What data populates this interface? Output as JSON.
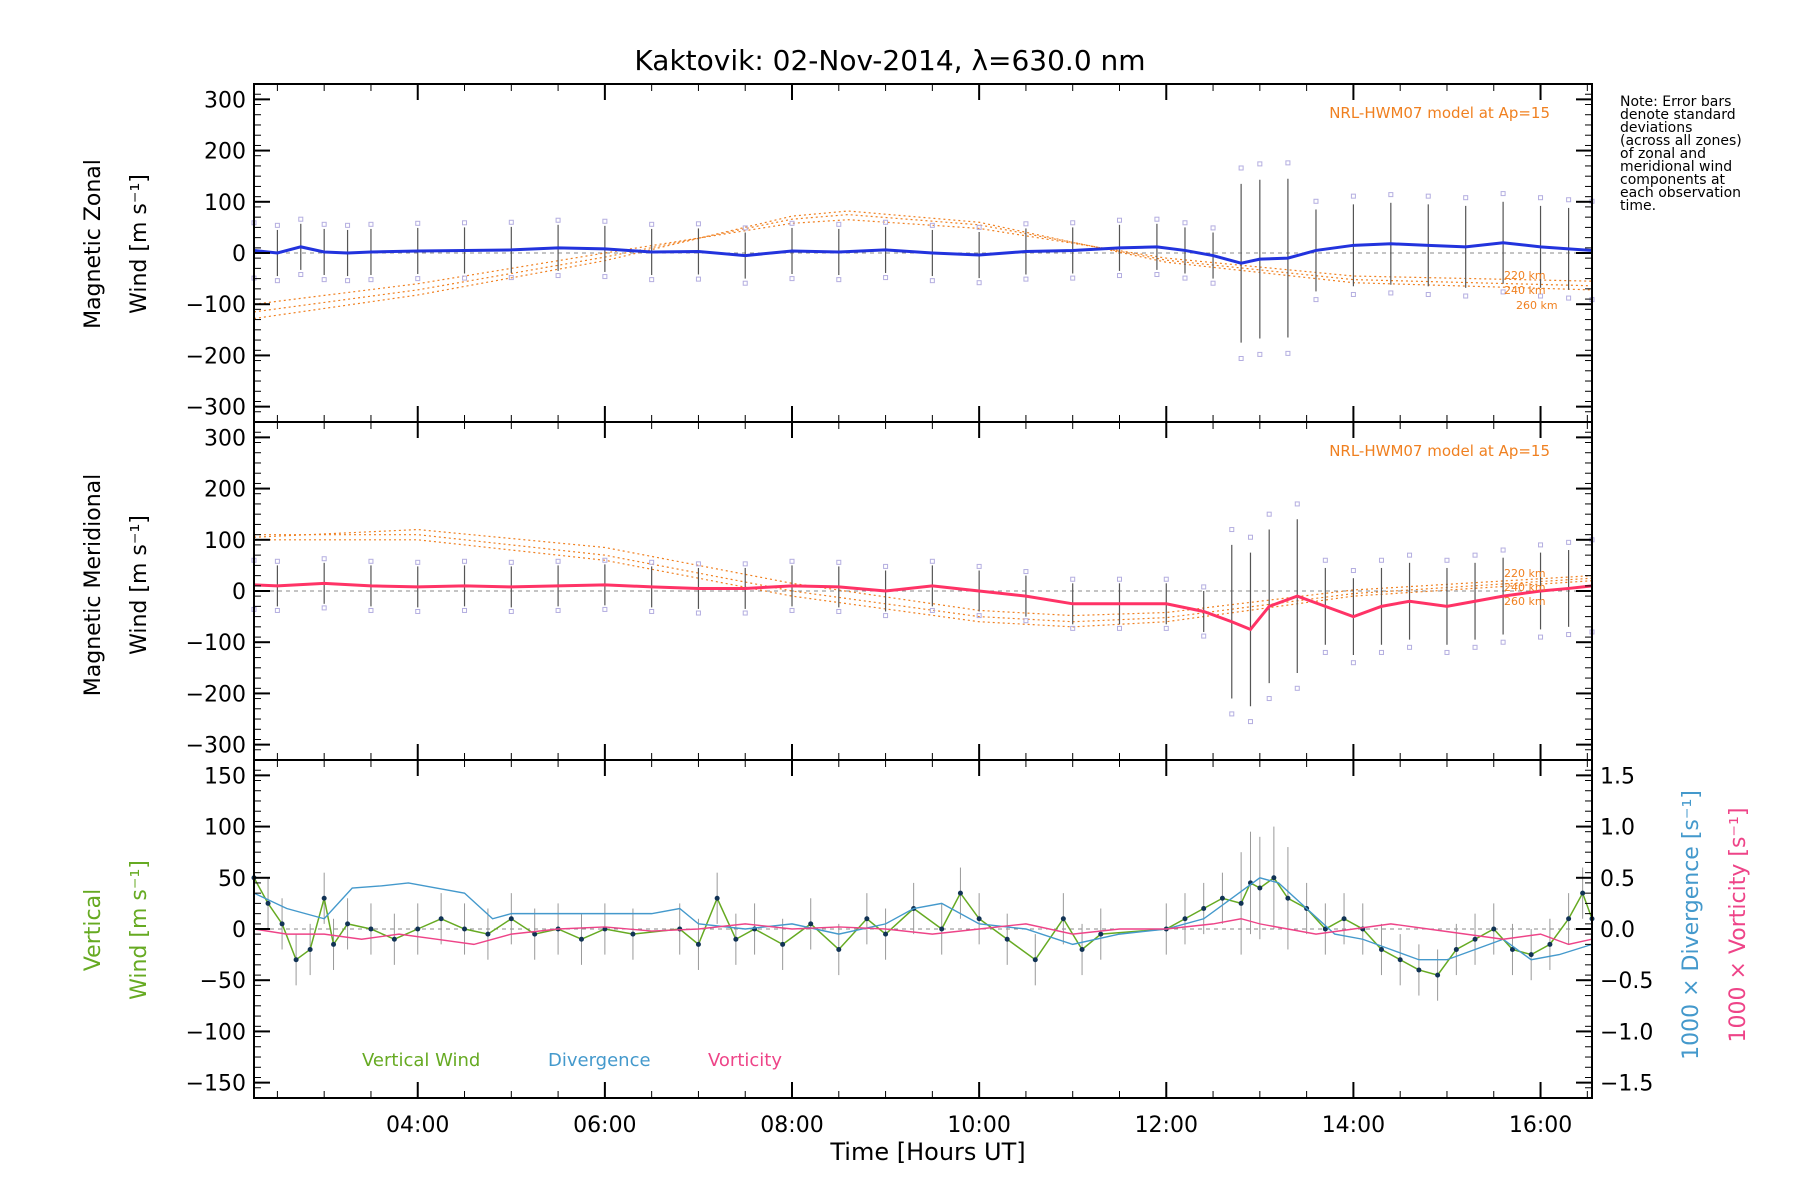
{
  "title": "Kaktovik: 02-Nov-2014, λ=630.0 nm",
  "note": [
    "Note: Error bars",
    "denote standard",
    "deviations",
    "(across all zones)",
    "of zonal and",
    "meridional wind",
    "components at",
    "each observation",
    "time."
  ],
  "colors": {
    "zonal": "#2233dd",
    "zonal_light": "#3a8fe0",
    "meridional": "#ff3366",
    "model": "#f08020",
    "raw_points": "#b4aee0",
    "vertical": "#66aa22",
    "divergence": "#4499cc",
    "vorticity": "#ee4488",
    "error_bars": "#555555"
  },
  "chart_data": [
    {
      "type": "line",
      "panel": "zonal",
      "ylabel_lines": [
        "Magnetic Zonal",
        "Wind [m s⁻¹]"
      ],
      "ylim": [
        -330,
        330
      ],
      "xlim": [
        2.25,
        16.55
      ],
      "yticks": [
        "300",
        "200",
        "100",
        "0",
        "−100",
        "−200",
        "−300"
      ],
      "yticks_values": [
        300,
        200,
        100,
        0,
        -100,
        -200,
        -300
      ],
      "model_label": "NRL-HWM07 model at Ap=15",
      "model_altitudes": [
        "220 km",
        "240 km",
        "260 km"
      ],
      "model_curves": [
        {
          "x": [
            2.25,
            4,
            6,
            8,
            8.6,
            10,
            12,
            14,
            16.55
          ],
          "y": [
            -100,
            -60,
            0,
            58,
            65,
            48,
            -10,
            -45,
            -55
          ]
        },
        {
          "x": [
            2.25,
            4,
            6,
            8,
            8.6,
            10,
            12,
            14,
            16.55
          ],
          "y": [
            -115,
            -72,
            -8,
            66,
            75,
            55,
            -14,
            -52,
            -64
          ]
        },
        {
          "x": [
            2.25,
            4,
            6,
            8,
            8.6,
            10,
            12,
            14,
            16.55
          ],
          "y": [
            -128,
            -82,
            -15,
            72,
            82,
            60,
            -18,
            -58,
            -72
          ]
        }
      ],
      "series": [
        {
          "name": "mean",
          "x": [
            2.25,
            2.5,
            2.75,
            3.0,
            3.25,
            3.5,
            4.0,
            4.5,
            5.0,
            5.5,
            6.0,
            6.5,
            7.0,
            7.5,
            8.0,
            8.5,
            9.0,
            9.5,
            10.0,
            10.5,
            11.0,
            11.5,
            11.9,
            12.2,
            12.5,
            12.8,
            13.0,
            13.3,
            13.6,
            14.0,
            14.4,
            14.8,
            15.2,
            15.6,
            16.0,
            16.3,
            16.55
          ],
          "y": [
            5,
            0,
            12,
            2,
            0,
            2,
            4,
            5,
            6,
            10,
            8,
            2,
            3,
            -5,
            4,
            2,
            6,
            0,
            -4,
            3,
            5,
            10,
            12,
            5,
            -5,
            -20,
            -12,
            -10,
            5,
            15,
            18,
            15,
            12,
            20,
            12,
            8,
            5
          ]
        }
      ]
    },
    {
      "type": "line",
      "panel": "meridional",
      "ylabel_lines": [
        "Magnetic Meridional",
        "Wind [m s⁻¹]"
      ],
      "ylim": [
        -330,
        330
      ],
      "xlim": [
        2.25,
        16.55
      ],
      "yticks": [
        "300",
        "200",
        "100",
        "0",
        "−100",
        "−200",
        "−300"
      ],
      "yticks_values": [
        300,
        200,
        100,
        0,
        -100,
        -200,
        -300
      ],
      "model_label": "NRL-HWM07 model at Ap=15",
      "model_altitudes": [
        "220 km",
        "240 km",
        "260 km"
      ],
      "model_curves": [
        {
          "x": [
            2.25,
            4,
            6,
            8,
            10,
            11,
            12,
            14,
            16.55
          ],
          "y": [
            100,
            100,
            60,
            -10,
            -60,
            -70,
            -60,
            -10,
            20
          ]
        },
        {
          "x": [
            2.25,
            4,
            6,
            8,
            10,
            11,
            12,
            14,
            16.55
          ],
          "y": [
            110,
            110,
            70,
            0,
            -50,
            -60,
            -52,
            -5,
            25
          ]
        },
        {
          "x": [
            2.25,
            4,
            6,
            8,
            10,
            11,
            12,
            14,
            16.55
          ],
          "y": [
            105,
            120,
            85,
            15,
            -38,
            -48,
            -42,
            2,
            30
          ]
        }
      ],
      "series": [
        {
          "name": "mean",
          "x": [
            2.25,
            2.5,
            3.0,
            3.5,
            4.0,
            4.5,
            5.0,
            5.5,
            6.0,
            6.5,
            7.0,
            7.5,
            8.0,
            8.5,
            9.0,
            9.5,
            10.0,
            10.5,
            11.0,
            11.5,
            12.0,
            12.4,
            12.7,
            12.9,
            13.1,
            13.4,
            13.7,
            14.0,
            14.3,
            14.6,
            15.0,
            15.3,
            15.6,
            16.0,
            16.3,
            16.55
          ],
          "y": [
            12,
            10,
            15,
            10,
            8,
            10,
            8,
            10,
            12,
            8,
            5,
            5,
            10,
            8,
            0,
            10,
            0,
            -10,
            -25,
            -25,
            -25,
            -40,
            -60,
            -75,
            -30,
            -10,
            -30,
            -50,
            -30,
            -20,
            -30,
            -20,
            -10,
            0,
            5,
            10
          ]
        }
      ]
    },
    {
      "type": "line",
      "panel": "vertical",
      "ylabel_lines": [
        "Vertical",
        "Wind [m s⁻¹]"
      ],
      "ylabel_right": [
        "1000 × Divergence [s⁻¹]",
        "1000 × Vorticity [s⁻¹]"
      ],
      "ylim": [
        -165,
        165
      ],
      "xlim": [
        2.25,
        16.55
      ],
      "yticks": [
        "150",
        "100",
        "50",
        "0",
        "−50",
        "−100",
        "−150"
      ],
      "yticks_values": [
        150,
        100,
        50,
        0,
        -50,
        -100,
        -150
      ],
      "y2lim": [
        -1.65,
        1.65
      ],
      "y2ticks": [
        "1.5",
        "1.0",
        "0.5",
        "0.0",
        "−0.5",
        "−1.0",
        "−1.5"
      ],
      "y2ticks_values": [
        1.5,
        1.0,
        0.5,
        0.0,
        -0.5,
        -1.0,
        -1.5
      ],
      "xticks": [
        "04:00",
        "06:00",
        "08:00",
        "10:00",
        "12:00",
        "14:00",
        "16:00"
      ],
      "xticks_values": [
        4,
        6,
        8,
        10,
        12,
        14,
        16
      ],
      "xlabel": "Time [Hours UT]",
      "legend": [
        "Vertical Wind",
        "Divergence",
        "Vorticity"
      ],
      "series": [
        {
          "name": "Vertical Wind",
          "axis": "left",
          "x": [
            2.25,
            2.4,
            2.55,
            2.7,
            2.85,
            3.0,
            3.1,
            3.25,
            3.5,
            3.75,
            4.0,
            4.25,
            4.5,
            4.75,
            5.0,
            5.25,
            5.5,
            5.75,
            6.0,
            6.3,
            6.8,
            7.0,
            7.2,
            7.4,
            7.6,
            7.9,
            8.2,
            8.5,
            8.8,
            9.0,
            9.3,
            9.6,
            9.8,
            10.0,
            10.3,
            10.6,
            10.9,
            11.1,
            11.3,
            12.0,
            12.2,
            12.4,
            12.6,
            12.8,
            12.9,
            13.0,
            13.15,
            13.3,
            13.5,
            13.7,
            13.9,
            14.1,
            14.3,
            14.5,
            14.7,
            14.9,
            15.1,
            15.3,
            15.5,
            15.7,
            15.9,
            16.1,
            16.3,
            16.45,
            16.55
          ],
          "y": [
            50,
            25,
            5,
            -30,
            -20,
            30,
            -15,
            5,
            0,
            -10,
            0,
            10,
            0,
            -5,
            10,
            -5,
            0,
            -10,
            0,
            -5,
            0,
            -15,
            30,
            -10,
            0,
            -15,
            5,
            -20,
            10,
            -5,
            20,
            0,
            35,
            10,
            -10,
            -30,
            10,
            -20,
            -5,
            0,
            10,
            20,
            30,
            25,
            45,
            40,
            50,
            30,
            20,
            0,
            10,
            0,
            -20,
            -30,
            -40,
            -45,
            -20,
            -10,
            0,
            -20,
            -25,
            -15,
            10,
            35,
            10
          ]
        },
        {
          "name": "Divergence",
          "axis": "right",
          "x": [
            2.25,
            2.6,
            3.0,
            3.3,
            3.6,
            3.9,
            4.2,
            4.5,
            4.8,
            5.0,
            5.5,
            6.0,
            6.5,
            6.8,
            7.0,
            7.5,
            8.0,
            8.5,
            9.0,
            9.3,
            9.6,
            10.0,
            10.5,
            11.0,
            11.5,
            12.0,
            12.4,
            12.7,
            13.0,
            13.2,
            13.5,
            13.8,
            14.1,
            14.4,
            14.7,
            15.0,
            15.3,
            15.6,
            15.9,
            16.2,
            16.55
          ],
          "y": [
            0.35,
            0.2,
            0.1,
            0.4,
            0.42,
            0.45,
            0.4,
            0.35,
            0.1,
            0.15,
            0.15,
            0.15,
            0.15,
            0.2,
            0.05,
            0.0,
            0.05,
            -0.05,
            0.05,
            0.2,
            0.25,
            0.05,
            0.0,
            -0.15,
            -0.05,
            0.0,
            0.1,
            0.3,
            0.5,
            0.45,
            0.2,
            -0.05,
            -0.1,
            -0.2,
            -0.3,
            -0.3,
            -0.2,
            -0.1,
            -0.3,
            -0.25,
            -0.15
          ]
        },
        {
          "name": "Vorticity",
          "axis": "right",
          "x": [
            2.25,
            2.6,
            3.0,
            3.4,
            3.8,
            4.2,
            4.6,
            5.0,
            5.5,
            6.0,
            6.5,
            7.0,
            7.5,
            8.0,
            8.5,
            9.0,
            9.5,
            10.0,
            10.5,
            11.0,
            11.5,
            12.0,
            12.5,
            12.8,
            13.0,
            13.3,
            13.6,
            14.0,
            14.4,
            14.8,
            15.2,
            15.6,
            16.0,
            16.3,
            16.55
          ],
          "y": [
            0.0,
            -0.05,
            -0.05,
            -0.1,
            -0.05,
            -0.1,
            -0.15,
            -0.05,
            0.0,
            0.02,
            -0.02,
            0.0,
            0.05,
            0.0,
            0.02,
            0.0,
            -0.05,
            0.0,
            0.05,
            -0.05,
            0.0,
            0.0,
            0.05,
            0.1,
            0.05,
            0.0,
            -0.05,
            0.0,
            0.05,
            0.0,
            -0.05,
            -0.1,
            -0.05,
            -0.15,
            -0.1
          ]
        }
      ]
    }
  ]
}
